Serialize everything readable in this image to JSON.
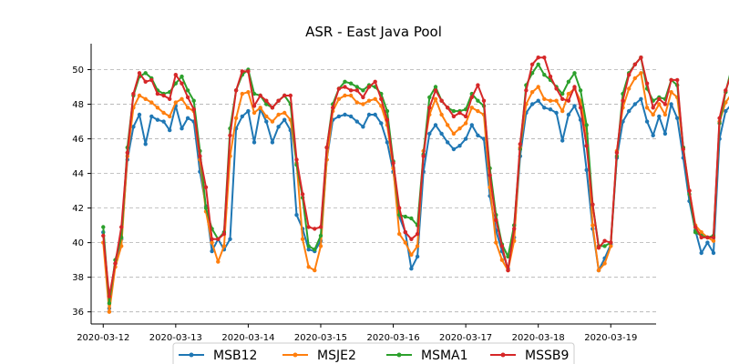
{
  "chart_data": {
    "type": "line",
    "title": "ASR - East Java Pool",
    "xlabel": "",
    "ylabel": "",
    "x_start": "2020-03-12",
    "x_step_hours": 2,
    "x_ticks": [
      "2020-03-12",
      "2020-03-13",
      "2020-03-14",
      "2020-03-15",
      "2020-03-16",
      "2020-03-17",
      "2020-03-18",
      "2020-03-19"
    ],
    "xlim": [
      "2020-03-11T20:00",
      "2020-03-19T15:00"
    ],
    "y_ticks": [
      36,
      38,
      40,
      42,
      44,
      46,
      48,
      50
    ],
    "ylim": [
      35.3,
      51.5
    ],
    "grid": "y-dashed",
    "legend_position": "bottom-center",
    "series": [
      {
        "name": "MSB12",
        "color": "#1f77b4",
        "values": [
          40.6,
          36.2,
          38.8,
          40.2,
          44.8,
          46.7,
          47.4,
          45.7,
          47.3,
          47.1,
          47.0,
          46.5,
          47.9,
          46.6,
          47.2,
          47.0,
          44.1,
          42.1,
          39.5,
          40.2,
          39.6,
          40.2,
          46.6,
          47.3,
          47.6,
          45.8,
          47.7,
          47.0,
          45.8,
          46.7,
          47.1,
          46.5,
          41.6,
          40.8,
          39.6,
          39.5,
          40.1,
          44.8,
          47.1,
          47.3,
          47.4,
          47.3,
          47.0,
          46.7,
          47.4,
          47.4,
          46.9,
          45.8,
          44.1,
          41.5,
          40.6,
          38.5,
          39.2,
          44.1,
          46.3,
          46.8,
          46.3,
          45.8,
          45.4,
          45.6,
          46.0,
          46.8,
          46.2,
          46.0,
          42.7,
          40.7,
          39.5,
          38.5,
          40.3,
          45.0,
          47.5,
          48.0,
          48.2,
          47.8,
          47.7,
          47.5,
          45.9,
          47.4,
          47.9,
          47.1,
          44.2,
          40.8,
          38.4,
          39.1,
          39.9,
          44.9,
          47.0,
          47.6,
          48.0,
          48.3,
          47.0,
          46.2,
          47.3,
          46.3,
          48.0,
          47.2,
          44.9,
          42.4,
          40.7,
          39.4,
          40.0,
          39.4,
          46.0,
          47.6,
          48.0,
          46.7,
          46.5,
          46.0,
          45.9,
          46.2,
          46.6,
          46.2,
          44.5,
          42.7,
          38.8,
          38.6,
          38.8,
          44.5,
          47.0,
          47.8,
          47.8
        ]
      },
      {
        "name": "MSJE2",
        "color": "#ff7f0e",
        "values": [
          40.0,
          36.0,
          38.6,
          39.8,
          45.0,
          47.8,
          48.5,
          48.3,
          48.1,
          47.8,
          47.5,
          47.3,
          48.1,
          48.3,
          47.8,
          47.6,
          44.8,
          41.8,
          40.0,
          38.9,
          39.8,
          45.0,
          47.2,
          48.6,
          48.7,
          47.5,
          47.8,
          47.3,
          47.0,
          47.4,
          47.5,
          47.1,
          44.6,
          40.2,
          38.6,
          38.4,
          39.8,
          44.8,
          47.6,
          48.3,
          48.5,
          48.5,
          48.1,
          48.0,
          48.2,
          48.3,
          47.9,
          46.8,
          44.3,
          40.5,
          40.0,
          39.3,
          39.8,
          45.3,
          47.4,
          48.3,
          47.4,
          46.8,
          46.3,
          46.6,
          46.9,
          47.8,
          47.6,
          47.4,
          43.2,
          40.0,
          39.0,
          38.4,
          40.1,
          45.5,
          48.0,
          48.7,
          49.0,
          48.3,
          48.2,
          48.2,
          47.6,
          48.6,
          48.9,
          48.2,
          46.3,
          41.0,
          38.4,
          38.8,
          39.8,
          45.3,
          47.8,
          48.9,
          49.5,
          49.8,
          47.8,
          47.4,
          48.0,
          47.4,
          48.7,
          48.4,
          45.5,
          43.0,
          41.0,
          40.6,
          40.3,
          40.1,
          47.0,
          48.1,
          48.6,
          48.2,
          48.0,
          47.7,
          47.3,
          47.3,
          47.6,
          47.3,
          44.2,
          41.8,
          39.9,
          38.7,
          39.3,
          45.1,
          47.5,
          48.4,
          49.0
        ]
      },
      {
        "name": "MSMA1",
        "color": "#2ca02c",
        "values": [
          40.9,
          36.5,
          39.0,
          40.3,
          45.5,
          48.5,
          49.6,
          49.8,
          49.5,
          48.8,
          48.6,
          48.7,
          49.2,
          49.6,
          48.8,
          48.2,
          45.3,
          42.0,
          40.8,
          40.2,
          40.6,
          46.6,
          48.8,
          49.7,
          50.0,
          48.6,
          48.5,
          48.0,
          47.8,
          48.2,
          48.5,
          48.0,
          44.5,
          42.6,
          39.8,
          39.6,
          40.4,
          45.5,
          48.0,
          48.9,
          49.3,
          49.2,
          49.0,
          48.8,
          49.1,
          49.0,
          48.6,
          47.6,
          44.7,
          41.6,
          41.5,
          41.4,
          41.0,
          45.1,
          48.4,
          49.0,
          48.2,
          47.8,
          47.6,
          47.6,
          47.7,
          48.6,
          48.2,
          47.9,
          44.3,
          41.6,
          39.9,
          39.2,
          41.0,
          45.4,
          49.1,
          49.8,
          50.3,
          49.7,
          49.4,
          49.0,
          48.6,
          49.3,
          49.8,
          48.8,
          46.8,
          42.2,
          39.8,
          39.8,
          40.0,
          45.0,
          48.6,
          49.8,
          50.3,
          50.7,
          48.9,
          48.2,
          48.4,
          48.3,
          49.4,
          49.1,
          45.5,
          42.8,
          40.6,
          40.4,
          40.3,
          40.4,
          46.9,
          48.7,
          50.1,
          49.4,
          48.8,
          48.5,
          48.1,
          48.3,
          48.8,
          48.6,
          44.6,
          42.7,
          39.8,
          38.6,
          38.8,
          44.7,
          48.2,
          49.8,
          50.4
        ]
      },
      {
        "name": "MSSB9",
        "color": "#d62728",
        "values": [
          40.4,
          36.9,
          38.8,
          40.9,
          45.2,
          48.6,
          49.8,
          49.3,
          49.4,
          48.6,
          48.5,
          48.3,
          49.7,
          49.2,
          48.4,
          47.7,
          45.0,
          43.2,
          40.2,
          40.2,
          40.5,
          46.2,
          48.8,
          49.9,
          49.9,
          47.9,
          48.5,
          48.2,
          47.8,
          48.2,
          48.5,
          48.5,
          44.8,
          42.8,
          40.9,
          40.8,
          40.9,
          45.5,
          47.8,
          48.9,
          49.0,
          48.8,
          48.8,
          48.4,
          49.0,
          49.3,
          48.3,
          47.1,
          44.6,
          42.0,
          40.6,
          40.2,
          40.5,
          45.0,
          47.8,
          48.8,
          48.2,
          47.8,
          47.3,
          47.5,
          47.3,
          48.4,
          49.1,
          48.2,
          43.9,
          41.3,
          39.8,
          38.4,
          40.8,
          45.7,
          48.8,
          50.3,
          50.7,
          50.7,
          49.6,
          48.9,
          48.3,
          48.2,
          49.0,
          47.8,
          45.6,
          42.2,
          39.7,
          40.1,
          40.0,
          45.2,
          48.2,
          49.7,
          50.3,
          50.7,
          49.2,
          47.8,
          48.3,
          48.0,
          49.4,
          49.4,
          45.4,
          43.0,
          40.9,
          40.3,
          40.3,
          40.3,
          47.2,
          48.8,
          49.8,
          49.7,
          49.0,
          48.7,
          48.3,
          47.9,
          48.5,
          48.6,
          45.0,
          42.0,
          40.6,
          39.8,
          40.2,
          45.0,
          48.7,
          49.8,
          50.0
        ]
      }
    ]
  }
}
